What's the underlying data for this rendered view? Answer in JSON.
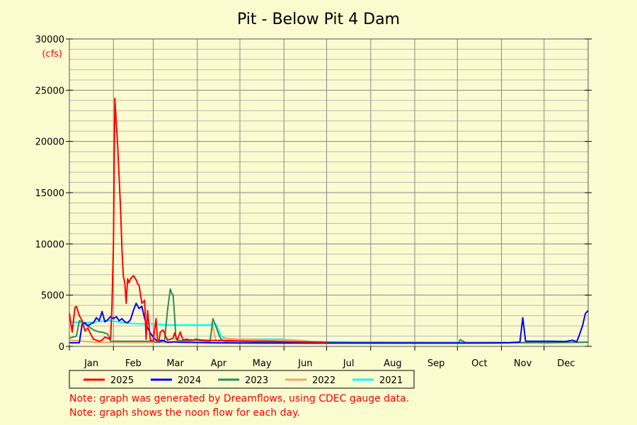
{
  "chart_data": {
    "type": "line",
    "title": "Pit - Below Pit 4 Dam",
    "units_label": "(cfs)",
    "ylim": [
      0,
      30000
    ],
    "y_ticks": [
      0,
      5000,
      10000,
      15000,
      20000,
      25000,
      30000
    ],
    "xlim": [
      1,
      366
    ],
    "x_tick_labels": [
      "Jan",
      "Feb",
      "Mar",
      "Apr",
      "May",
      "Jun",
      "Jul",
      "Aug",
      "Sep",
      "Oct",
      "Nov",
      "Dec"
    ],
    "grid": true,
    "legend_position": "bottom",
    "series": [
      {
        "name": "2025",
        "color": "#ff0000",
        "x": [
          1,
          3,
          5,
          6,
          8,
          10,
          12,
          14,
          16,
          18,
          20,
          22,
          24,
          26,
          28,
          30,
          31,
          32,
          33,
          35,
          37,
          38,
          39,
          40,
          41,
          42,
          43,
          44,
          46,
          48,
          49,
          50,
          52,
          54,
          55,
          56,
          58,
          60,
          62,
          63,
          64,
          65,
          67,
          69,
          70,
          72,
          74,
          75,
          77,
          79,
          81,
          83,
          85,
          88,
          90,
          92,
          95,
          100,
          110,
          120,
          130,
          140,
          150,
          160,
          165,
          170,
          175,
          180,
          183
        ],
        "y": [
          3200,
          1400,
          3800,
          3900,
          3000,
          2500,
          1500,
          1800,
          1200,
          700,
          600,
          500,
          600,
          900,
          800,
          700,
          4000,
          10000,
          24200,
          19500,
          13500,
          9500,
          6800,
          6200,
          4200,
          6600,
          6200,
          6600,
          6900,
          6500,
          6100,
          6000,
          4200,
          4500,
          700,
          3500,
          600,
          550,
          2700,
          600,
          500,
          1400,
          1600,
          900,
          600,
          700,
          800,
          1300,
          600,
          1400,
          600,
          700,
          650,
          600,
          700,
          650,
          600,
          580,
          560,
          540,
          520,
          500,
          480,
          450,
          430,
          420,
          410,
          400,
          400
        ]
      },
      {
        "name": "2024",
        "color": "#0000ff",
        "x": [
          1,
          5,
          8,
          10,
          12,
          14,
          16,
          18,
          20,
          22,
          24,
          26,
          28,
          30,
          32,
          34,
          36,
          38,
          40,
          42,
          44,
          46,
          48,
          50,
          52,
          54,
          56,
          58,
          60,
          62,
          64,
          66,
          68,
          70,
          75,
          80,
          90,
          100,
          120,
          150,
          180,
          210,
          240,
          270,
          300,
          310,
          315,
          318,
          320,
          322,
          330,
          340,
          350,
          355,
          358,
          360,
          362,
          364,
          366
        ],
        "y": [
          350,
          350,
          350,
          2200,
          2300,
          2000,
          2200,
          2300,
          2800,
          2500,
          3400,
          2400,
          2600,
          2900,
          2700,
          2900,
          2500,
          2700,
          2400,
          2300,
          2600,
          3500,
          4200,
          3700,
          3900,
          2700,
          1800,
          1300,
          900,
          600,
          500,
          600,
          500,
          400,
          450,
          400,
          380,
          350,
          330,
          320,
          320,
          320,
          320,
          320,
          330,
          350,
          400,
          420,
          2800,
          500,
          500,
          500,
          480,
          600,
          450,
          1200,
          2000,
          3200,
          3500
        ]
      },
      {
        "name": "2023",
        "color": "#2e8b57",
        "x": [
          1,
          6,
          8,
          10,
          12,
          14,
          16,
          18,
          20,
          22,
          24,
          26,
          28,
          30,
          35,
          40,
          50,
          55,
          60,
          62,
          64,
          66,
          68,
          70,
          72,
          73,
          74,
          75,
          76,
          78,
          80,
          85,
          90,
          95,
          100,
          102,
          104,
          106,
          108,
          110,
          115,
          120,
          130,
          150,
          180,
          200,
          230,
          250,
          275,
          276,
          280,
          300,
          320,
          330,
          340,
          350,
          360,
          366
        ],
        "y": [
          800,
          1000,
          2500,
          2400,
          2200,
          2000,
          1800,
          1600,
          1500,
          1400,
          1400,
          1300,
          1200,
          500,
          500,
          500,
          500,
          500,
          500,
          400,
          400,
          500,
          600,
          3500,
          5600,
          5200,
          5000,
          3000,
          700,
          600,
          550,
          550,
          600,
          550,
          500,
          2700,
          2000,
          1200,
          600,
          500,
          500,
          500,
          450,
          420,
          400,
          380,
          370,
          360,
          350,
          650,
          350,
          360,
          350,
          360,
          350,
          380,
          400,
          420
        ]
      },
      {
        "name": "2022",
        "color": "#f4a460",
        "x": [
          1,
          10,
          20,
          30,
          40,
          50,
          60,
          70,
          80,
          90,
          100,
          101,
          102,
          103,
          104,
          106,
          110,
          120,
          130,
          140,
          150,
          160,
          170,
          180
        ],
        "y": [
          600,
          500,
          400,
          400,
          380,
          380,
          380,
          380,
          400,
          400,
          400,
          1500,
          2000,
          1200,
          600,
          500,
          800,
          700,
          700,
          600,
          650,
          600,
          500,
          450
        ]
      },
      {
        "name": "2021",
        "color": "#00ffff",
        "x": [
          1,
          10,
          20,
          30,
          40,
          50,
          55,
          60,
          70,
          80,
          90,
          100,
          104,
          108,
          112,
          115,
          120,
          130,
          140,
          150,
          160,
          170,
          180,
          200,
          250,
          300,
          366
        ],
        "y": [
          2400,
          2300,
          2400,
          2500,
          2300,
          2200,
          2200,
          2200,
          2100,
          2100,
          2100,
          2100,
          2200,
          1000,
          700,
          700,
          700,
          700,
          700,
          700,
          600,
          500,
          450,
          420,
          400,
          400,
          400
        ]
      }
    ]
  },
  "notes": [
    "Note: graph was generated by Dreamflows, using CDEC gauge data.",
    "Note: graph shows the noon flow for each day."
  ]
}
